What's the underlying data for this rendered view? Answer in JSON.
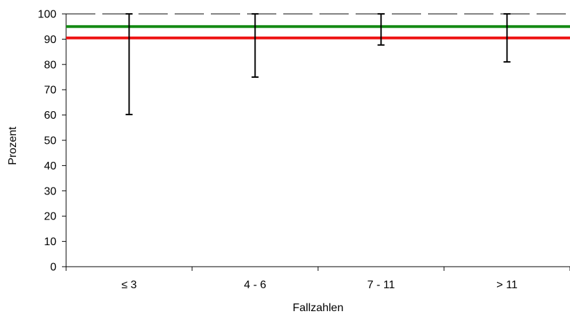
{
  "chart_data": {
    "type": "errorbar",
    "title": "",
    "xlabel": "Fallzahlen",
    "ylabel": "Prozent",
    "categories": [
      "≤ 3",
      "4 - 6",
      "7 - 11",
      "> 11"
    ],
    "ylim": [
      0,
      100
    ],
    "yticks": [
      0,
      10,
      20,
      30,
      40,
      50,
      60,
      70,
      80,
      90,
      100
    ],
    "error_bars": [
      {
        "category": "≤ 3",
        "lower": 60.2,
        "upper": 100
      },
      {
        "category": "4 - 6",
        "lower": 75.0,
        "upper": 100
      },
      {
        "category": "7 - 11",
        "lower": 87.7,
        "upper": 100
      },
      {
        "category": "> 11",
        "lower": 81.0,
        "upper": 100
      }
    ],
    "reference_lines": [
      {
        "value": 95,
        "color": "#138a13"
      },
      {
        "value": 90.5,
        "color": "#ee1111"
      }
    ],
    "grid": false,
    "top_border": "dashed"
  }
}
